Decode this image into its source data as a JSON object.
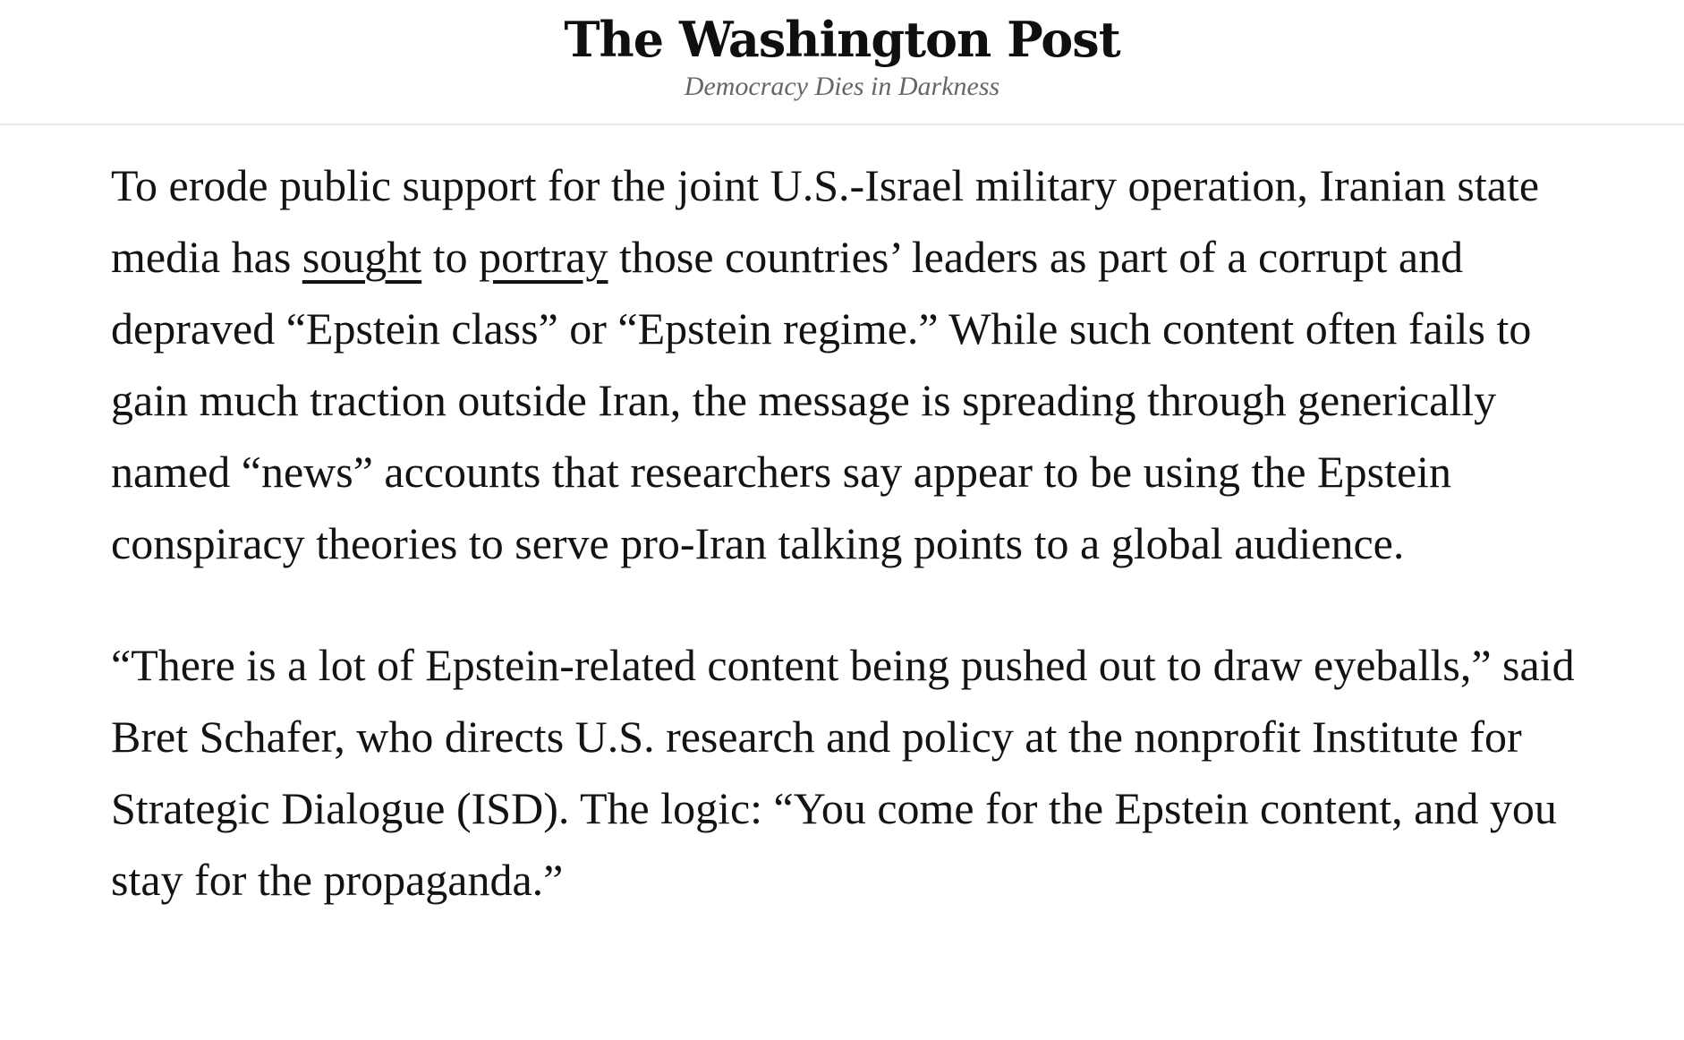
{
  "header": {
    "masthead": "The Washington Post",
    "tagline": "Democracy Dies in Darkness"
  },
  "article": {
    "paragraphs": [
      {
        "segments": [
          {
            "text": "To erode public support for the joint U.S.-Israel military operation, Iranian state media has ",
            "link": false
          },
          {
            "text": "sought",
            "link": true
          },
          {
            "text": " to ",
            "link": false
          },
          {
            "text": "portray",
            "link": true
          },
          {
            "text": " those countries’ leaders as part of a corrupt and depraved “Epstein class” or “Epstein regime.” While such content often fails to gain much traction outside Iran, the message is spreading through generically named “news” accounts that researchers say appear to be using the Epstein conspiracy theories to serve pro-Iran talking points to a global audience.",
            "link": false
          }
        ]
      },
      {
        "segments": [
          {
            "text": "“There is a lot of Epstein-related content being pushed out to draw eyeballs,” said Bret Schafer, who directs U.S. research and policy at the nonprofit Institute for Strategic Dialogue (ISD). The logic: “You come for the Epstein content, and you stay for the propaganda.”",
            "link": false
          }
        ]
      }
    ]
  },
  "colors": {
    "text": "#131313",
    "tagline": "#666666",
    "divider": "#e9e9e9",
    "link_underline": "#131313"
  }
}
